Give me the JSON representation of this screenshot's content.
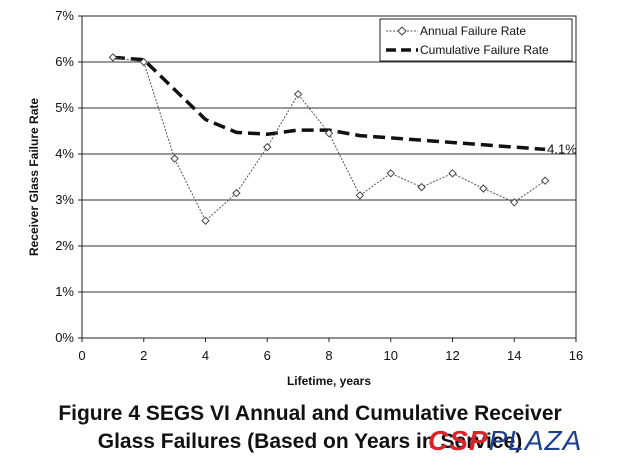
{
  "chart_data": {
    "type": "line",
    "title": "",
    "xlabel": "Lifetime, years",
    "ylabel": "Receiver Glass Failure Rate",
    "xlim": [
      0,
      16
    ],
    "ylim": [
      0,
      7
    ],
    "x_ticks": [
      "0",
      "2",
      "4",
      "6",
      "8",
      "10",
      "12",
      "14",
      "16"
    ],
    "y_ticks": [
      "0%",
      "1%",
      "2%",
      "3%",
      "4%",
      "5%",
      "6%",
      "7%"
    ],
    "grid": "horizontal",
    "legend_position": "top-right",
    "series": [
      {
        "name": "Annual Failure Rate",
        "style": "thin-line-diamond-markers",
        "color": "#555555",
        "x": [
          1,
          2,
          3,
          4,
          5,
          6,
          7,
          8,
          9,
          10,
          11,
          12,
          13,
          14,
          15
        ],
        "y": [
          6.1,
          6.0,
          3.9,
          2.55,
          3.15,
          4.15,
          5.3,
          4.45,
          3.1,
          3.58,
          3.28,
          3.58,
          3.25,
          2.95,
          3.42
        ]
      },
      {
        "name": "Cumulative Failure Rate",
        "style": "thick-dashed",
        "color": "#111111",
        "x": [
          1,
          2,
          3,
          4,
          5,
          6,
          7,
          8,
          9,
          10,
          11,
          12,
          13,
          14,
          15
        ],
        "y": [
          6.1,
          6.05,
          5.4,
          4.75,
          4.47,
          4.43,
          4.52,
          4.52,
          4.4,
          4.35,
          4.3,
          4.25,
          4.2,
          4.15,
          4.1
        ]
      }
    ],
    "annotations": [
      {
        "text": "4.1%",
        "x": 15,
        "y": 4.1
      }
    ]
  },
  "caption": {
    "line1": "Figure 4 SEGS VI Annual and Cumulative Receiver",
    "line2": "Glass Failures (Based on Years in Service)"
  },
  "watermark": {
    "part1": "CSP",
    "part2": "PLAZA"
  }
}
